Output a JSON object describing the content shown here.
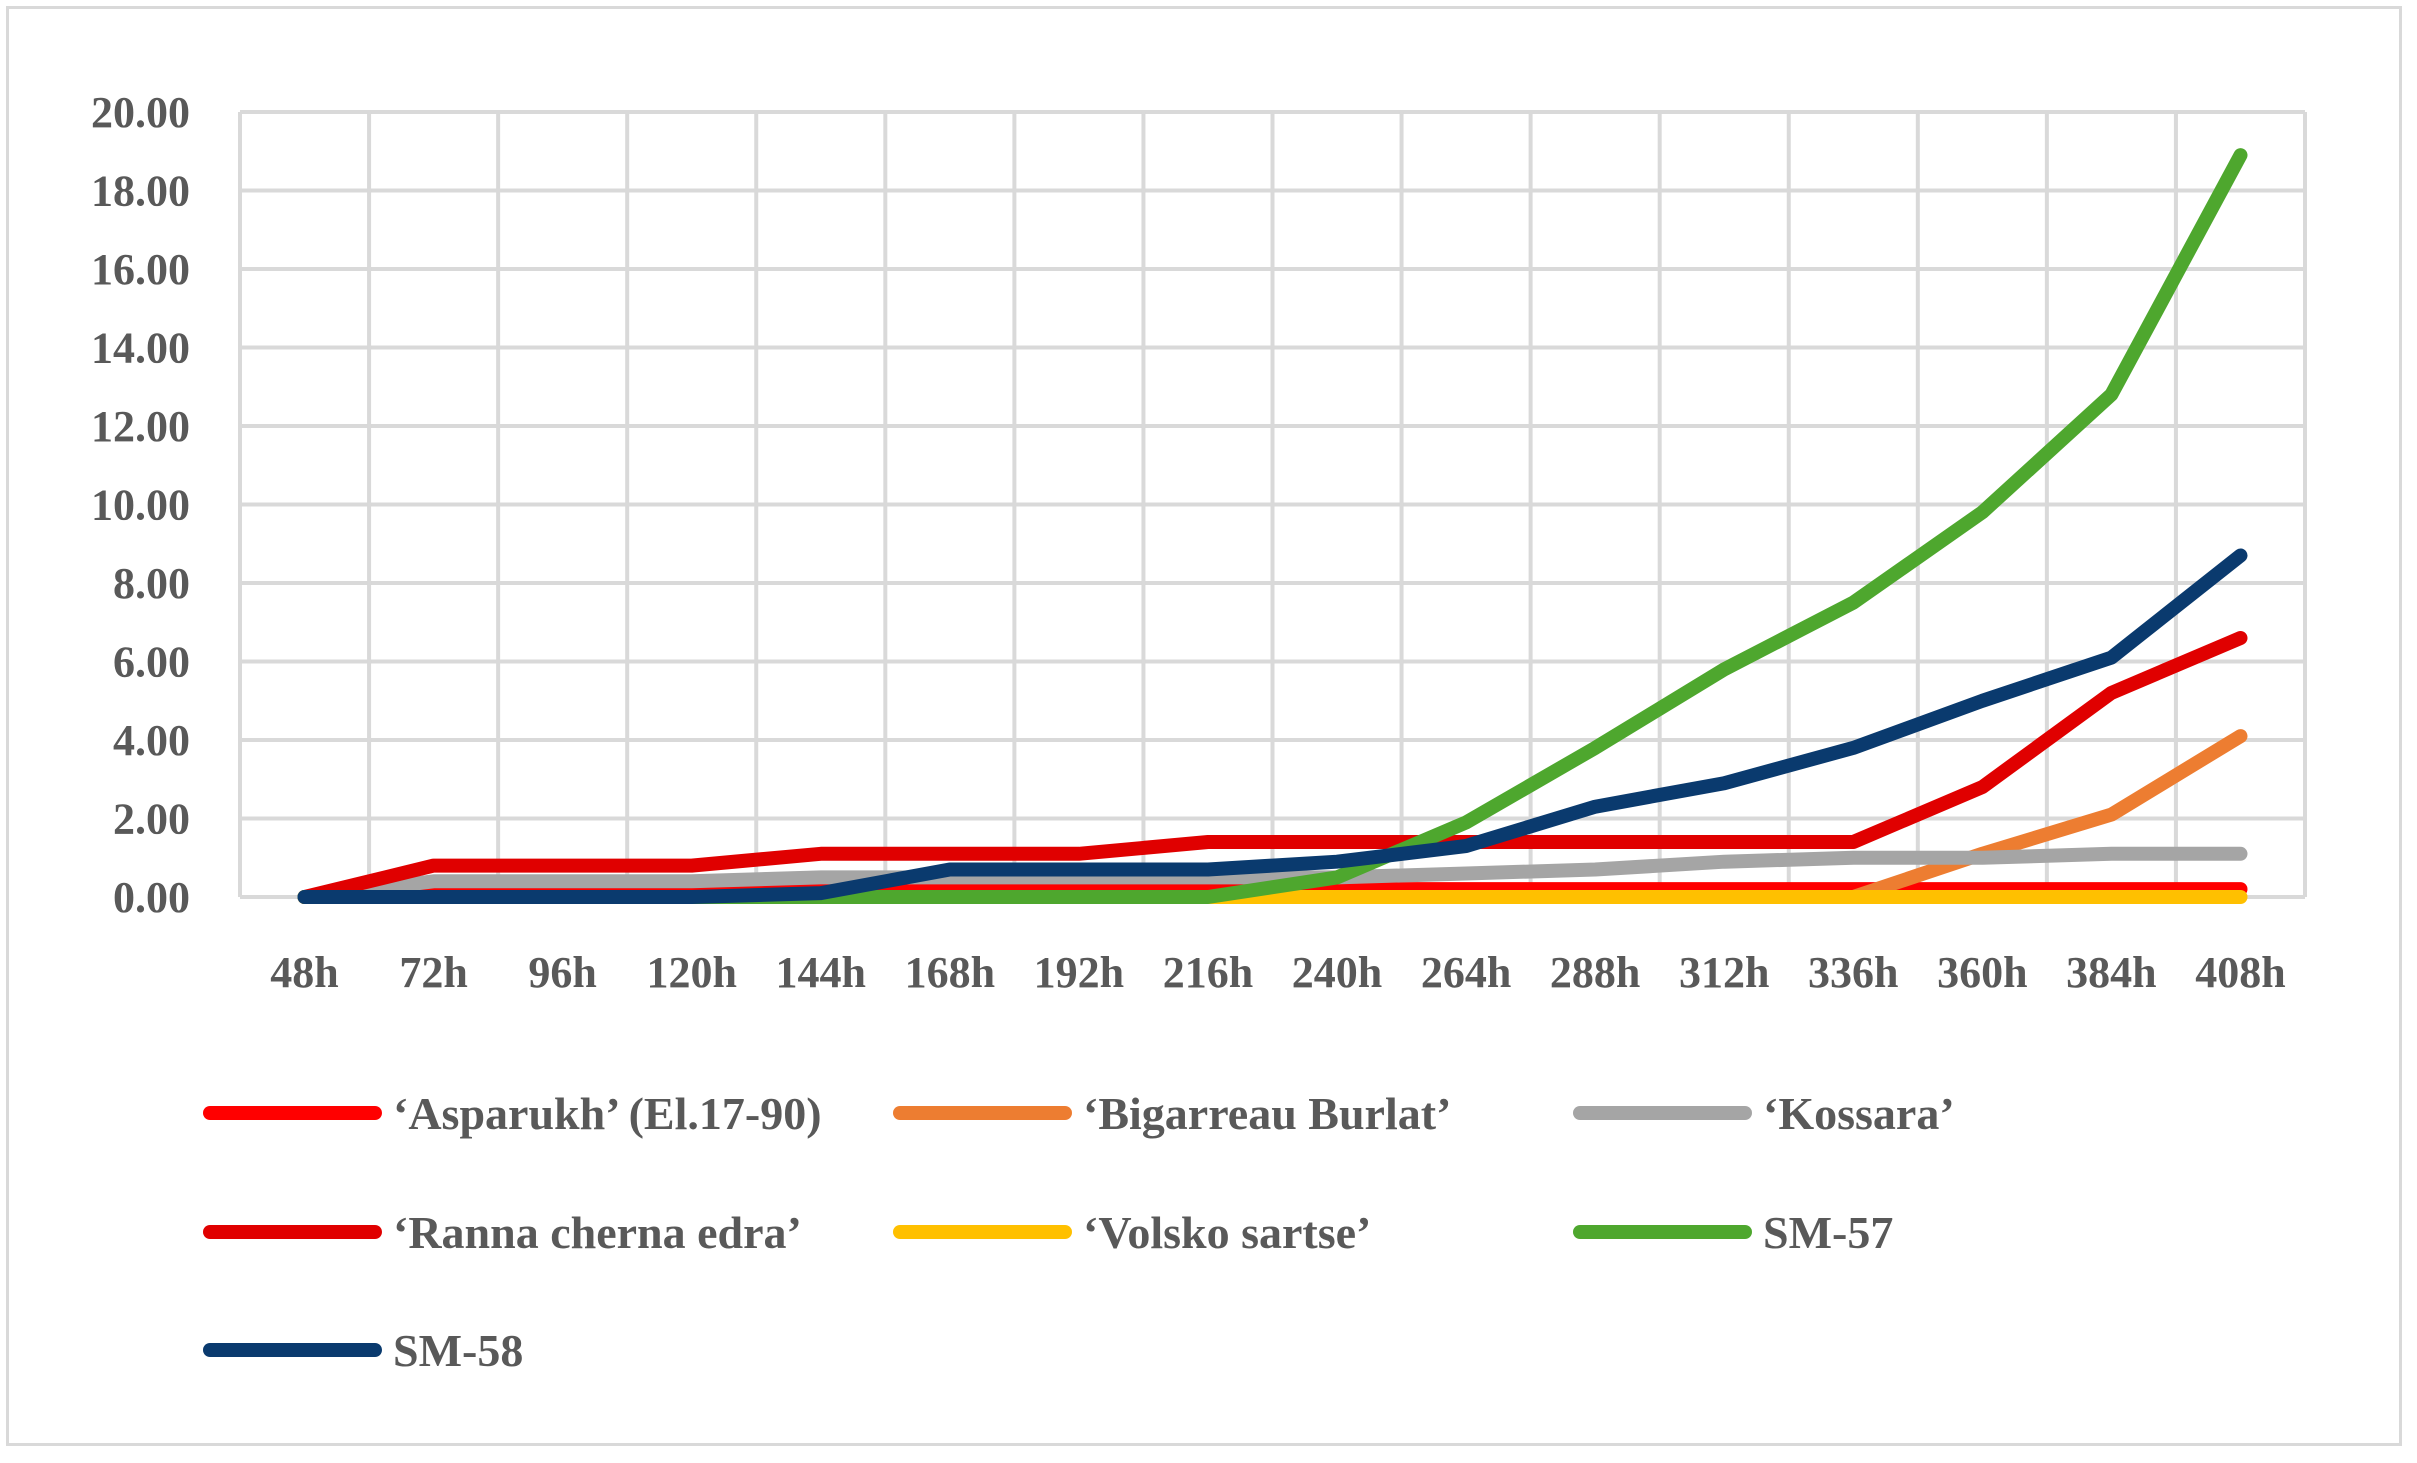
{
  "chart_data": {
    "type": "line",
    "title": "",
    "xlabel": "",
    "ylabel": "",
    "ylim": [
      0,
      20
    ],
    "y_tick_step": 2,
    "y_tick_labels": [
      "0.00",
      "2.00",
      "4.00",
      "6.00",
      "8.00",
      "10.00",
      "12.00",
      "14.00",
      "16.00",
      "18.00",
      "20.00"
    ],
    "grid": true,
    "legend_position": "bottom",
    "categories": [
      "48h",
      "72h",
      "96h",
      "120h",
      "144h",
      "168h",
      "192h",
      "216h",
      "240h",
      "264h",
      "288h",
      "312h",
      "336h",
      "360h",
      "384h",
      "408h"
    ],
    "series": [
      {
        "name": "‘Asparukh’ (El.17-90)",
        "color": "#ff0000",
        "values": [
          0,
          0.2,
          0.2,
          0.2,
          0.2,
          0.2,
          0.2,
          0.2,
          0.2,
          0.2,
          0.2,
          0.2,
          0.2,
          0.2,
          0.2,
          0.2
        ]
      },
      {
        "name": "‘Bigarreau Burlat’",
        "color": "#ed7d31",
        "values": [
          0,
          0,
          0,
          0,
          0,
          0,
          0,
          0,
          0,
          0,
          0,
          0,
          0,
          1.1,
          2.1,
          4.1
        ]
      },
      {
        "name": "‘Kossara’",
        "color": "#a5a5a5",
        "values": [
          0,
          0.4,
          0.4,
          0.4,
          0.5,
          0.5,
          0.5,
          0.5,
          0.5,
          0.6,
          0.7,
          0.9,
          1.0,
          1.0,
          1.1,
          1.1
        ]
      },
      {
        "name": "‘Ranna cherna edra’",
        "color": "#e00000",
        "values": [
          0,
          0.8,
          0.8,
          0.8,
          1.1,
          1.1,
          1.1,
          1.4,
          1.4,
          1.4,
          1.4,
          1.4,
          1.4,
          2.8,
          5.2,
          6.6
        ]
      },
      {
        "name": "‘Volsko sartse’",
        "color": "#ffc000",
        "values": [
          0,
          0,
          0,
          0,
          0,
          0,
          0,
          0,
          0,
          0,
          0,
          0,
          0,
          0,
          0,
          0
        ]
      },
      {
        "name": "SM-57",
        "color": "#4ea72e",
        "values": [
          0,
          0,
          0,
          0,
          0,
          0,
          0,
          0,
          0.5,
          1.9,
          3.8,
          5.8,
          7.5,
          9.8,
          12.8,
          18.9
        ]
      },
      {
        "name": "SM-58",
        "color": "#0a3a6e",
        "values": [
          0,
          0,
          0,
          0,
          0.1,
          0.7,
          0.7,
          0.7,
          0.9,
          1.3,
          2.3,
          2.9,
          3.8,
          5.0,
          6.1,
          8.7
        ]
      }
    ]
  }
}
